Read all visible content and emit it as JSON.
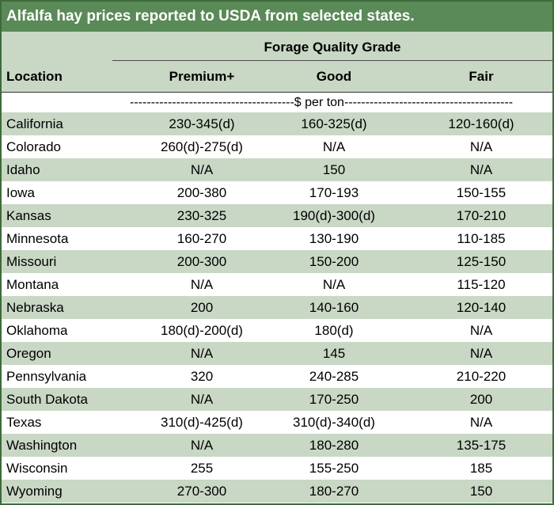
{
  "title": "Alfalfa hay prices reported to USDA from selected states.",
  "header": {
    "group_label": "Forage Quality Grade",
    "location_label": "Location",
    "columns": [
      "Premium+",
      "Good",
      "Fair"
    ]
  },
  "unit_row": "---------------------------------------$ per ton----------------------------------------",
  "rows": [
    {
      "location": "California",
      "premium": "230-345(d)",
      "good": "160-325(d)",
      "fair": "120-160(d)"
    },
    {
      "location": "Colorado",
      "premium": "260(d)-275(d)",
      "good": "N/A",
      "fair": "N/A"
    },
    {
      "location": "Idaho",
      "premium": "N/A",
      "good": "150",
      "fair": "N/A"
    },
    {
      "location": "Iowa",
      "premium": "200-380",
      "good": "170-193",
      "fair": "150-155"
    },
    {
      "location": "Kansas",
      "premium": "230-325",
      "good": "190(d)-300(d)",
      "fair": "170-210"
    },
    {
      "location": "Minnesota",
      "premium": "160-270",
      "good": "130-190",
      "fair": "110-185"
    },
    {
      "location": "Missouri",
      "premium": "200-300",
      "good": "150-200",
      "fair": "125-150"
    },
    {
      "location": "Montana",
      "premium": "N/A",
      "good": "N/A",
      "fair": "115-120"
    },
    {
      "location": "Nebraska",
      "premium": "200",
      "good": "140-160",
      "fair": "120-140"
    },
    {
      "location": "Oklahoma",
      "premium": "180(d)-200(d)",
      "good": "180(d)",
      "fair": "N/A"
    },
    {
      "location": "Oregon",
      "premium": "N/A",
      "good": "145",
      "fair": "N/A"
    },
    {
      "location": "Pennsylvania",
      "premium": "320",
      "good": "240-285",
      "fair": "210-220"
    },
    {
      "location": "South Dakota",
      "premium": "N/A",
      "good": "170-250",
      "fair": "200"
    },
    {
      "location": "Texas",
      "premium": "310(d)-425(d)",
      "good": "310(d)-340(d)",
      "fair": "N/A"
    },
    {
      "location": "Washington",
      "premium": "N/A",
      "good": "180-280",
      "fair": "135-175"
    },
    {
      "location": "Wisconsin",
      "premium": "255",
      "good": "155-250",
      "fair": "185"
    },
    {
      "location": "Wyoming",
      "premium": "270-300",
      "good": "180-270",
      "fair": "150"
    }
  ]
}
